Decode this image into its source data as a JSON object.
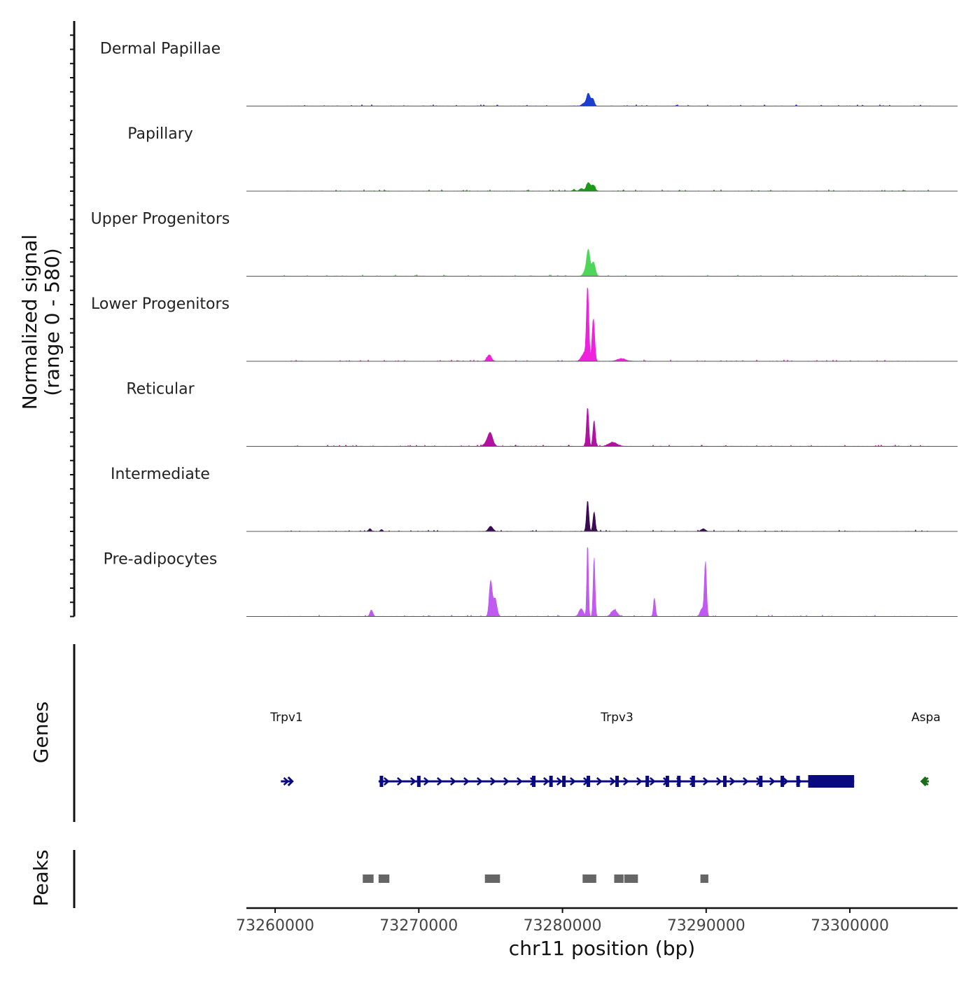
{
  "chart_data": {
    "type": "area",
    "chromosome": "chr11",
    "xlim": [
      73258000,
      73307500
    ],
    "xlabel": "chr11 position (bp)",
    "xticks": [
      73260000,
      73270000,
      73280000,
      73290000,
      73300000
    ],
    "xtick_labels": [
      "73260000",
      "73270000",
      "73280000",
      "73290000",
      "73300000"
    ],
    "ylabel_line1": "Normalized signal",
    "ylabel_line2": "(range 0 - 580)",
    "ylim": [
      0,
      580
    ],
    "tracks": [
      {
        "name": "Dermal Papillae",
        "color": "#1a3fcf",
        "peaks": [
          [
            73281800,
            95,
            120
          ],
          [
            73282100,
            55,
            110
          ],
          [
            73281500,
            20,
            150
          ]
        ]
      },
      {
        "name": "Papillary",
        "color": "#1a9a16",
        "peaks": [
          [
            73281800,
            65,
            140
          ],
          [
            73282150,
            45,
            120
          ],
          [
            73281300,
            20,
            120
          ],
          [
            73280800,
            12,
            100
          ]
        ]
      },
      {
        "name": "Upper Progenitors",
        "color": "#4fd65a",
        "peaks": [
          [
            73281800,
            190,
            110
          ],
          [
            73282150,
            110,
            130
          ],
          [
            73281600,
            40,
            150
          ]
        ]
      },
      {
        "name": "Lower Progenitors",
        "color": "#ee22dd",
        "peaks": [
          [
            73281750,
            560,
            80
          ],
          [
            73282150,
            330,
            90
          ],
          [
            73281500,
            60,
            180
          ],
          [
            73274900,
            50,
            150
          ],
          [
            73284100,
            20,
            300
          ]
        ]
      },
      {
        "name": "Reticular",
        "color": "#b0139f",
        "peaks": [
          [
            73281750,
            300,
            80
          ],
          [
            73282200,
            200,
            80
          ],
          [
            73275000,
            80,
            160
          ],
          [
            73274800,
            40,
            200
          ],
          [
            73283500,
            30,
            300
          ]
        ]
      },
      {
        "name": "Intermediate",
        "color": "#3a0b55",
        "peaks": [
          [
            73281750,
            240,
            80
          ],
          [
            73282200,
            150,
            80
          ],
          [
            73275000,
            40,
            150
          ],
          [
            73289800,
            20,
            150
          ],
          [
            73266600,
            22,
            90
          ],
          [
            73267400,
            15,
            80
          ]
        ]
      },
      {
        "name": "Pre-adipocytes",
        "color": "#c05af0",
        "peaks": [
          [
            73281750,
            580,
            55
          ],
          [
            73282200,
            460,
            65
          ],
          [
            73275000,
            270,
            100
          ],
          [
            73275300,
            140,
            130
          ],
          [
            73289950,
            420,
            75
          ],
          [
            73286400,
            140,
            70
          ],
          [
            73289700,
            60,
            120
          ],
          [
            73266700,
            50,
            100
          ],
          [
            73281300,
            60,
            150
          ],
          [
            73283600,
            50,
            200
          ]
        ]
      }
    ],
    "genes_label": "Genes",
    "genes": [
      {
        "name": "Trpv1",
        "label_x": 73260800,
        "start": 73260400,
        "end": 73261200,
        "strand": "+",
        "color": "#0a0a80",
        "exons": [],
        "cds": []
      },
      {
        "name": "Trpv3",
        "label_x": 73283800,
        "start": 73267200,
        "end": 73300300,
        "strand": "+",
        "color": "#0a0a80",
        "exons": [
          73267400,
          73270000,
          73278000,
          73279200,
          73280100,
          73281800,
          73283800,
          73285900,
          73287300,
          73288100,
          73289100,
          73291300,
          73293800,
          73295300,
          73296400
        ],
        "cds": [
          [
            73297100,
            73300300
          ]
        ]
      },
      {
        "name": "Aspa",
        "label_x": 73305300,
        "start": 73305000,
        "end": 73305500,
        "strand": "-",
        "color": "#1a6b1a",
        "exons": [],
        "cds": []
      }
    ],
    "peaks_label": "Peaks",
    "peak_regions": [
      [
        73266100,
        73266900
      ],
      [
        73267200,
        73268000
      ],
      [
        73274600,
        73275700
      ],
      [
        73281400,
        73282400
      ],
      [
        73283600,
        73284300
      ],
      [
        73284300,
        73285300
      ],
      [
        73289600,
        73290200
      ]
    ],
    "peak_color": "#666666"
  }
}
